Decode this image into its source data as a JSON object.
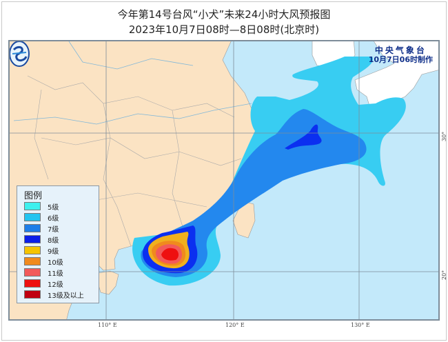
{
  "header": {
    "title": "今年第14号台风“小犬”未来24小时大风预报图",
    "subtitle": "2023年10月7日08时—8日08时(北京时)"
  },
  "agency": {
    "name": "中央气象台",
    "issued": "10月7日06时制作"
  },
  "legend": {
    "title": "图例",
    "items": [
      {
        "label": "5级",
        "color": "#3ef0ee"
      },
      {
        "label": "6级",
        "color": "#22c4f0"
      },
      {
        "label": "7级",
        "color": "#1e7ee8"
      },
      {
        "label": "8级",
        "color": "#0a1ee8"
      },
      {
        "label": "9级",
        "color": "#f5c400"
      },
      {
        "label": "10级",
        "color": "#f08a1e"
      },
      {
        "label": "11级",
        "color": "#f25a5a"
      },
      {
        "label": "12级",
        "color": "#ee1010"
      },
      {
        "label": "13级及以上",
        "color": "#c00010"
      }
    ]
  },
  "axes": {
    "lon_labels": [
      "110° E",
      "120° E",
      "130° E"
    ],
    "lat_labels": [
      "30° N",
      "20° N"
    ]
  },
  "colors": {
    "sea": "#c3e9fa",
    "china_land": "#fbe3c3",
    "foreign_land": "#ffffff",
    "title_text": "#10308a"
  }
}
